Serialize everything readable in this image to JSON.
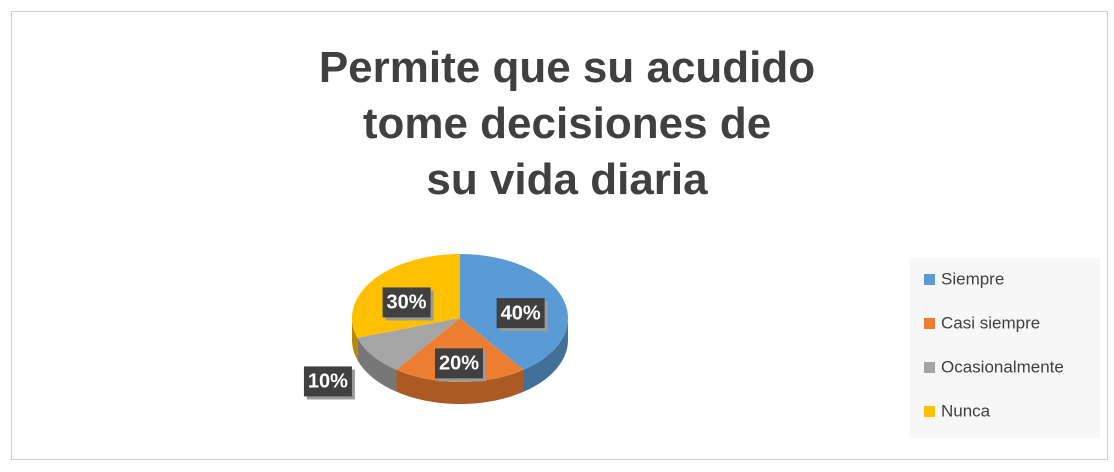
{
  "chart_data": {
    "type": "pie",
    "title": "Permite que su acudido\ntome decisiones de\nsu vida diaria",
    "categories": [
      "Siempre",
      "Casi siempre",
      "Ocasionalmente",
      "Nunca"
    ],
    "values": [
      40,
      20,
      10,
      30
    ],
    "value_labels": [
      "40%",
      "20%",
      "10%",
      "30%"
    ],
    "colors": [
      "#5b9bd5",
      "#ed7d31",
      "#a5a5a5",
      "#ffc000"
    ],
    "legend": "right"
  }
}
